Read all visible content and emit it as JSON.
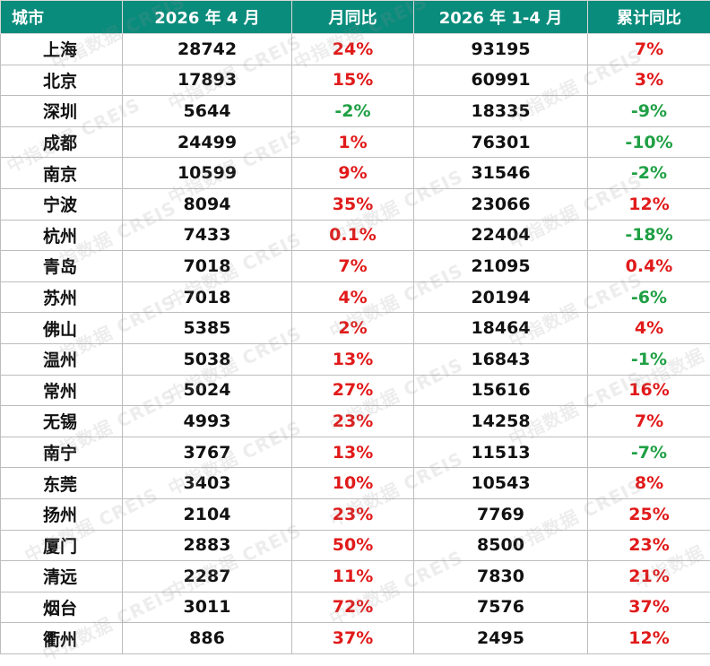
{
  "colors": {
    "header_bg": "#0a8c7c",
    "header_text": "#ffffff",
    "positive": "#e11a1a",
    "negative": "#20a045",
    "text": "#111111"
  },
  "watermark": "中指数据 CREIS",
  "headers": [
    "城市",
    "2026 年 4 月",
    "月同比",
    "2026 年 1-4 月",
    "累计同比"
  ],
  "rows": [
    {
      "city": "上海",
      "april": "28742",
      "mom": "24%",
      "ytd": "93195",
      "ytd_yoy": "7%"
    },
    {
      "city": "北京",
      "april": "17893",
      "mom": "15%",
      "ytd": "60991",
      "ytd_yoy": "3%"
    },
    {
      "city": "深圳",
      "april": "5644",
      "mom": "-2%",
      "ytd": "18335",
      "ytd_yoy": "-9%"
    },
    {
      "city": "成都",
      "april": "24499",
      "mom": "1%",
      "ytd": "76301",
      "ytd_yoy": "-10%"
    },
    {
      "city": "南京",
      "april": "10599",
      "mom": "9%",
      "ytd": "31546",
      "ytd_yoy": "-2%"
    },
    {
      "city": "宁波",
      "april": "8094",
      "mom": "35%",
      "ytd": "23066",
      "ytd_yoy": "12%"
    },
    {
      "city": "杭州",
      "april": "7433",
      "mom": "0.1%",
      "ytd": "22404",
      "ytd_yoy": "-18%"
    },
    {
      "city": "青岛",
      "april": "7018",
      "mom": "7%",
      "ytd": "21095",
      "ytd_yoy": "0.4%"
    },
    {
      "city": "苏州",
      "april": "7018",
      "mom": "4%",
      "ytd": "20194",
      "ytd_yoy": "-6%"
    },
    {
      "city": "佛山",
      "april": "5385",
      "mom": "2%",
      "ytd": "18464",
      "ytd_yoy": "4%"
    },
    {
      "city": "温州",
      "april": "5038",
      "mom": "13%",
      "ytd": "16843",
      "ytd_yoy": "-1%"
    },
    {
      "city": "常州",
      "april": "5024",
      "mom": "27%",
      "ytd": "15616",
      "ytd_yoy": "16%"
    },
    {
      "city": "无锡",
      "april": "4993",
      "mom": "23%",
      "ytd": "14258",
      "ytd_yoy": "7%"
    },
    {
      "city": "南宁",
      "april": "3767",
      "mom": "13%",
      "ytd": "11513",
      "ytd_yoy": "-7%"
    },
    {
      "city": "东莞",
      "april": "3403",
      "mom": "10%",
      "ytd": "10543",
      "ytd_yoy": "8%"
    },
    {
      "city": "扬州",
      "april": "2104",
      "mom": "23%",
      "ytd": "7769",
      "ytd_yoy": "25%"
    },
    {
      "city": "厦门",
      "april": "2883",
      "mom": "50%",
      "ytd": "8500",
      "ytd_yoy": "23%"
    },
    {
      "city": "清远",
      "april": "2287",
      "mom": "11%",
      "ytd": "7830",
      "ytd_yoy": "21%"
    },
    {
      "city": "烟台",
      "april": "3011",
      "mom": "72%",
      "ytd": "7576",
      "ytd_yoy": "37%"
    },
    {
      "city": "衢州",
      "april": "886",
      "mom": "37%",
      "ytd": "2495",
      "ytd_yoy": "12%"
    }
  ]
}
